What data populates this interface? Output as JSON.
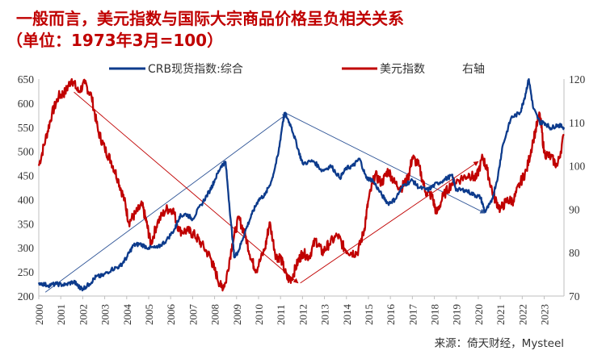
{
  "chart_data": {
    "type": "line",
    "title": "一般而言，美元指数与国际大宗商品价格呈负相关关系",
    "subtitle": "（单位：1973年3月=100）",
    "source": "来源：倚天财经，Mysteel",
    "x_range": [
      2000,
      2023.9
    ],
    "x_ticks": [
      "2000",
      "2001",
      "2002",
      "2003",
      "2004",
      "2005",
      "2006",
      "2007",
      "2008",
      "2009",
      "2010",
      "2011",
      "2012",
      "2013",
      "2014",
      "2015",
      "2016",
      "2017",
      "2018",
      "2019",
      "2020",
      "2021",
      "2022",
      "2023"
    ],
    "y_left": {
      "range": [
        200,
        650
      ],
      "ticks": [
        200,
        250,
        300,
        350,
        400,
        450,
        500,
        550,
        600,
        650
      ]
    },
    "y_right": {
      "range": [
        70,
        120
      ],
      "ticks": [
        70,
        80,
        90,
        100,
        110,
        120
      ],
      "label": "右轴"
    },
    "legend_position": "top",
    "grid": false,
    "colors": {
      "crb": "#0d3b8c",
      "dxy": "#c00000",
      "arrow_blue": "#2f5597",
      "arrow_red": "#c00000"
    },
    "series": [
      {
        "name": "CRB现货指数:综合",
        "axis": "left",
        "points": [
          [
            2000.0,
            228
          ],
          [
            2000.4,
            222
          ],
          [
            2000.8,
            225
          ],
          [
            2001.2,
            223
          ],
          [
            2001.6,
            230
          ],
          [
            2001.8,
            220
          ],
          [
            2002.0,
            215
          ],
          [
            2002.3,
            225
          ],
          [
            2002.6,
            240
          ],
          [
            2002.9,
            242
          ],
          [
            2003.3,
            255
          ],
          [
            2003.7,
            262
          ],
          [
            2004.0,
            280
          ],
          [
            2004.3,
            305
          ],
          [
            2004.6,
            308
          ],
          [
            2005.0,
            300
          ],
          [
            2005.4,
            300
          ],
          [
            2005.8,
            315
          ],
          [
            2006.2,
            340
          ],
          [
            2006.4,
            365
          ],
          [
            2006.7,
            370
          ],
          [
            2007.0,
            360
          ],
          [
            2007.4,
            390
          ],
          [
            2007.8,
            420
          ],
          [
            2008.0,
            440
          ],
          [
            2008.3,
            470
          ],
          [
            2008.5,
            478
          ],
          [
            2008.75,
            350
          ],
          [
            2008.9,
            280
          ],
          [
            2009.1,
            295
          ],
          [
            2009.4,
            335
          ],
          [
            2009.7,
            370
          ],
          [
            2010.0,
            400
          ],
          [
            2010.3,
            410
          ],
          [
            2010.6,
            440
          ],
          [
            2010.9,
            495
          ],
          [
            2011.1,
            560
          ],
          [
            2011.2,
            580
          ],
          [
            2011.5,
            550
          ],
          [
            2011.8,
            505
          ],
          [
            2012.0,
            475
          ],
          [
            2012.5,
            480
          ],
          [
            2012.9,
            460
          ],
          [
            2013.3,
            470
          ],
          [
            2013.7,
            445
          ],
          [
            2014.0,
            465
          ],
          [
            2014.3,
            470
          ],
          [
            2014.6,
            485
          ],
          [
            2014.9,
            445
          ],
          [
            2015.2,
            440
          ],
          [
            2015.6,
            410
          ],
          [
            2015.9,
            392
          ],
          [
            2016.2,
            400
          ],
          [
            2016.6,
            430
          ],
          [
            2017.0,
            440
          ],
          [
            2017.3,
            425
          ],
          [
            2017.7,
            420
          ],
          [
            2018.0,
            430
          ],
          [
            2018.4,
            440
          ],
          [
            2018.8,
            450
          ],
          [
            2019.0,
            420
          ],
          [
            2019.4,
            420
          ],
          [
            2019.8,
            410
          ],
          [
            2020.1,
            405
          ],
          [
            2020.3,
            375
          ],
          [
            2020.6,
            395
          ],
          [
            2020.9,
            450
          ],
          [
            2021.1,
            510
          ],
          [
            2021.5,
            570
          ],
          [
            2021.9,
            580
          ],
          [
            2022.1,
            610
          ],
          [
            2022.3,
            650
          ],
          [
            2022.5,
            590
          ],
          [
            2022.8,
            560
          ],
          [
            2023.0,
            560
          ],
          [
            2023.3,
            548
          ],
          [
            2023.6,
            555
          ],
          [
            2023.9,
            550
          ]
        ]
      },
      {
        "name": "美元指数",
        "axis": "right",
        "points": [
          [
            2000.0,
            100
          ],
          [
            2000.3,
            106
          ],
          [
            2000.6,
            112
          ],
          [
            2000.9,
            116
          ],
          [
            2001.2,
            117
          ],
          [
            2001.5,
            120
          ],
          [
            2001.8,
            117
          ],
          [
            2002.1,
            119
          ],
          [
            2002.4,
            116
          ],
          [
            2002.7,
            108
          ],
          [
            2003.0,
            104
          ],
          [
            2003.3,
            101
          ],
          [
            2003.6,
            97
          ],
          [
            2003.9,
            92
          ],
          [
            2004.1,
            87
          ],
          [
            2004.4,
            89
          ],
          [
            2004.7,
            91
          ],
          [
            2004.9,
            87
          ],
          [
            2005.1,
            82
          ],
          [
            2005.4,
            87
          ],
          [
            2005.8,
            90
          ],
          [
            2006.1,
            90
          ],
          [
            2006.4,
            85
          ],
          [
            2006.8,
            85
          ],
          [
            2007.1,
            84
          ],
          [
            2007.4,
            82
          ],
          [
            2007.8,
            79
          ],
          [
            2008.0,
            76
          ],
          [
            2008.3,
            72
          ],
          [
            2008.5,
            73
          ],
          [
            2008.8,
            82
          ],
          [
            2009.1,
            88
          ],
          [
            2009.4,
            84
          ],
          [
            2009.7,
            78
          ],
          [
            2009.9,
            76
          ],
          [
            2010.3,
            81
          ],
          [
            2010.5,
            87
          ],
          [
            2010.8,
            79
          ],
          [
            2011.0,
            79
          ],
          [
            2011.3,
            74
          ],
          [
            2011.5,
            74
          ],
          [
            2011.8,
            78
          ],
          [
            2012.0,
            80
          ],
          [
            2012.3,
            79
          ],
          [
            2012.6,
            83
          ],
          [
            2012.9,
            80
          ],
          [
            2013.2,
            82
          ],
          [
            2013.6,
            84
          ],
          [
            2013.9,
            81
          ],
          [
            2014.2,
            80
          ],
          [
            2014.5,
            80
          ],
          [
            2014.8,
            85
          ],
          [
            2015.0,
            92
          ],
          [
            2015.3,
            98
          ],
          [
            2015.6,
            96
          ],
          [
            2015.9,
            99
          ],
          [
            2016.2,
            96
          ],
          [
            2016.5,
            95
          ],
          [
            2016.8,
            97
          ],
          [
            2017.0,
            102
          ],
          [
            2017.3,
            100
          ],
          [
            2017.6,
            94
          ],
          [
            2017.9,
            93
          ],
          [
            2018.1,
            89
          ],
          [
            2018.4,
            93
          ],
          [
            2018.8,
            96
          ],
          [
            2019.2,
            97
          ],
          [
            2019.6,
            98
          ],
          [
            2019.9,
            97
          ],
          [
            2020.2,
            102
          ],
          [
            2020.4,
            99
          ],
          [
            2020.7,
            93
          ],
          [
            2021.0,
            90
          ],
          [
            2021.3,
            92
          ],
          [
            2021.6,
            92
          ],
          [
            2021.9,
            96
          ],
          [
            2022.2,
            99
          ],
          [
            2022.5,
            106
          ],
          [
            2022.8,
            112
          ],
          [
            2023.0,
            103
          ],
          [
            2023.3,
            102
          ],
          [
            2023.6,
            100
          ],
          [
            2023.9,
            107
          ]
        ]
      }
    ],
    "trend_arrows": [
      {
        "color": "blue",
        "from": [
          2000.3,
          208
        ],
        "to": [
          2011.3,
          578
        ],
        "axis": "left"
      },
      {
        "color": "blue",
        "from": [
          2011.3,
          578
        ],
        "to": [
          2020.3,
          372
        ],
        "axis": "left"
      },
      {
        "color": "red",
        "from": [
          2001.6,
          117
        ],
        "to": [
          2011.8,
          73
        ],
        "axis": "right"
      },
      {
        "color": "red",
        "from": [
          2011.9,
          73
        ],
        "to": [
          2020.0,
          101
        ],
        "axis": "right"
      }
    ]
  }
}
